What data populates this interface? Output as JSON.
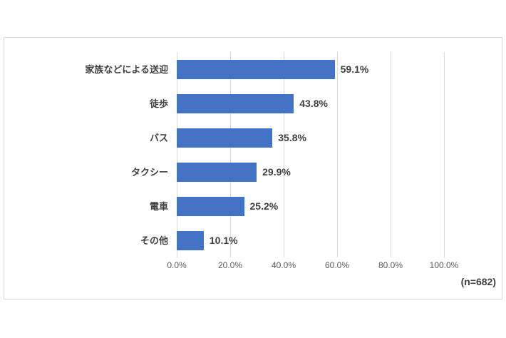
{
  "chart_data": {
    "type": "bar",
    "orientation": "horizontal",
    "title": "",
    "xlabel": "",
    "ylabel": "",
    "categories": [
      "家族などによる送迎",
      "徒歩",
      "バス",
      "タクシー",
      "電車",
      "その他"
    ],
    "values": [
      59.1,
      43.8,
      35.8,
      29.9,
      25.2,
      10.1
    ],
    "value_labels": [
      "59.1%",
      "43.8%",
      "35.8%",
      "29.9%",
      "25.2%",
      "10.1%"
    ],
    "x_ticks": [
      0,
      20,
      40,
      60,
      80,
      100
    ],
    "x_tick_labels": [
      "0.0%",
      "20.0%",
      "40.0%",
      "60.0%",
      "80.0%",
      "100.0%"
    ],
    "xlim": [
      0,
      100
    ],
    "grid": true,
    "legend": "none",
    "annotation": "(n=682)"
  },
  "colors": {
    "bar_fill": "#4472c4",
    "gridline": "#d9d9d9",
    "chart_border": "#d9d9d9",
    "category_label": "#404040",
    "value_label": "#404040",
    "tick_label": "#595959",
    "annotation": "#404040",
    "background": "#ffffff"
  }
}
